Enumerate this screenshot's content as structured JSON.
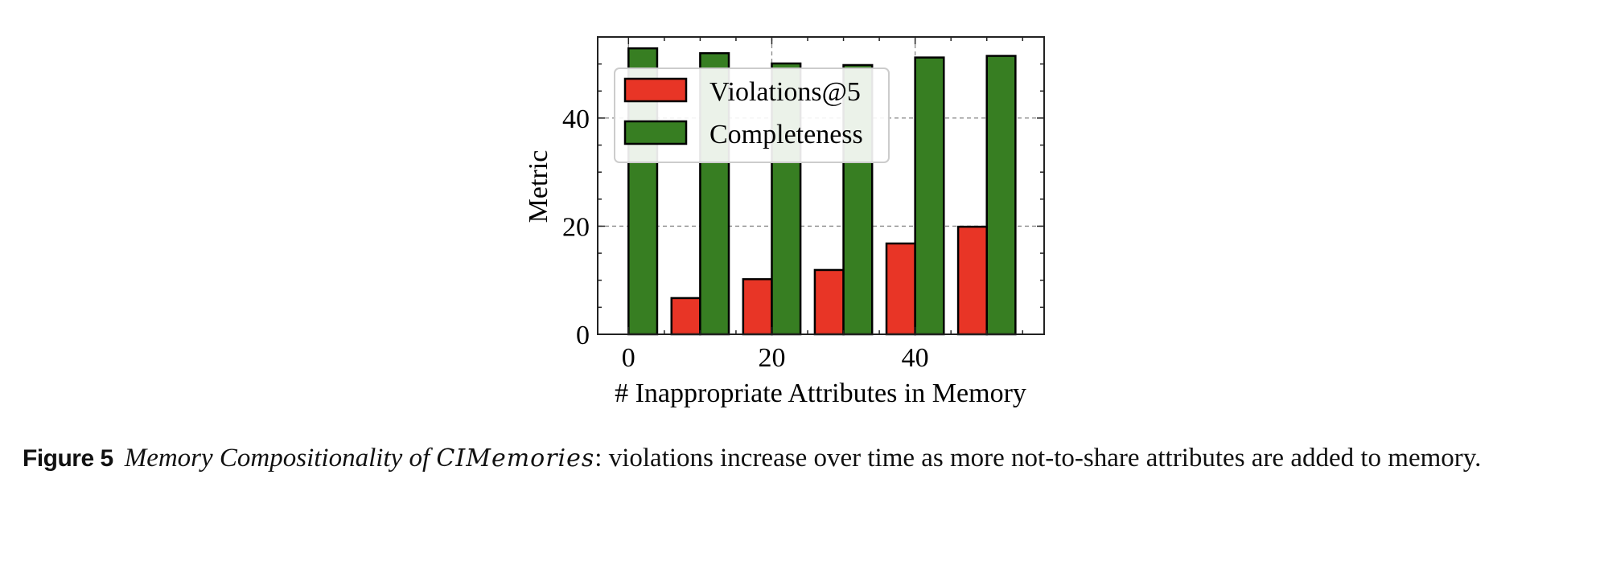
{
  "chart_data": {
    "type": "bar",
    "title": "",
    "xlabel": "# Inappropriate Attributes in Memory",
    "ylabel": "Metric",
    "x": [
      0,
      10,
      20,
      30,
      40,
      50
    ],
    "series": [
      {
        "name": "Violations@5",
        "color": "#E83526",
        "values": [
          0,
          6.7,
          10.2,
          11.9,
          16.8,
          19.9
        ]
      },
      {
        "name": "Completeness",
        "color": "#377E22",
        "values": [
          52.9,
          52.0,
          50.1,
          49.8,
          51.2,
          51.5
        ]
      }
    ],
    "xticks": [
      0,
      20,
      40
    ],
    "xtick_labels": [
      "0",
      "20",
      "40"
    ],
    "yticks": [
      0,
      20,
      40
    ],
    "ytick_labels": [
      "0",
      "20",
      "40"
    ],
    "xlim": [
      -4.3,
      58
    ],
    "ylim": [
      0,
      55
    ],
    "grid": true,
    "legend_position": "upper left"
  },
  "legend": {
    "items": [
      {
        "label": "Violations@5",
        "color": "#E83526"
      },
      {
        "label": "Completeness",
        "color": "#377E22"
      }
    ]
  },
  "caption": {
    "figure_label": "Figure 5",
    "title": "Memory Compositionality of",
    "name": "CIMemories",
    "text": ": violations increase over time as more not-to-share attributes are added to memory."
  }
}
